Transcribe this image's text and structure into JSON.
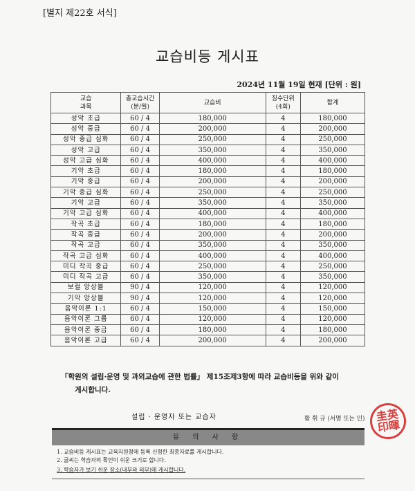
{
  "form_no": "[별지 제22호 서식]",
  "title": "교습비등 게시표",
  "date_line": "2024년 11월 19일   현재 [단위 : 원]",
  "table": {
    "headers": [
      "교습\n과목",
      "총교습시간\n(분/월)",
      "교습비",
      "징수단위\n(4회)",
      "합계"
    ],
    "rows": [
      [
        "성악 초급",
        "60 / 4",
        "180,000",
        "4",
        "180,000"
      ],
      [
        "성악 중급",
        "60 / 4",
        "200,000",
        "4",
        "200,000"
      ],
      [
        "성악 중급 심화",
        "60 / 4",
        "250,000",
        "4",
        "250,000"
      ],
      [
        "성악 고급",
        "60 / 4",
        "350,000",
        "4",
        "350,000"
      ],
      [
        "성악 고급 심화",
        "60 / 4",
        "400,000",
        "4",
        "400,000"
      ],
      [
        "기악 초급",
        "60 / 4",
        "180,000",
        "4",
        "180,000"
      ],
      [
        "기악 중급",
        "60 / 4",
        "200,000",
        "4",
        "200,000"
      ],
      [
        "기악 중급 심화",
        "60 / 4",
        "250,000",
        "4",
        "250,000"
      ],
      [
        "기악 고급",
        "60 / 4",
        "350,000",
        "4",
        "350,000"
      ],
      [
        "기악 고급 심화",
        "60 / 4",
        "400,000",
        "4",
        "400,000"
      ],
      [
        "작곡 초급",
        "60 / 4",
        "180,000",
        "4",
        "180,000"
      ],
      [
        "작곡 중급",
        "60 / 4",
        "200,000",
        "4",
        "200,000"
      ],
      [
        "작곡 고급",
        "60 / 4",
        "350,000",
        "4",
        "350,000"
      ],
      [
        "작곡 고급 심화",
        "60 / 4",
        "400,000",
        "4",
        "400,000"
      ],
      [
        "미디 작곡 중급",
        "60 / 4",
        "250,000",
        "4",
        "250,000"
      ],
      [
        "미디 작곡 고급",
        "60 / 4",
        "350,000",
        "4",
        "350,000"
      ],
      [
        "보컬 앙상블",
        "90 / 4",
        "120,000",
        "4",
        "120,000"
      ],
      [
        "기악 앙상블",
        "90 / 4",
        "120,000",
        "4",
        "120,000"
      ],
      [
        "음악이론 1:1",
        "60 / 4",
        "150,000",
        "4",
        "150,000"
      ],
      [
        "음악이론 그룹",
        "60 / 4",
        "120,000",
        "4",
        "120,000"
      ],
      [
        "음악이론 중급",
        "60 / 4",
        "180,000",
        "4",
        "180,000"
      ],
      [
        "음악이론 고급",
        "60 / 4",
        "200,000",
        "4",
        "200,000"
      ]
    ]
  },
  "notice": {
    "line1": "「학원의 설립·운영 및 과외교습에 관한 법률」 제15조제3항에 따라 교습비등을 위와 같이",
    "line2": "게시합니다."
  },
  "founder_label": "설립 · 운영자 또는 교습자",
  "signer": "황 휘 규 (서명 또는 인)",
  "stamp_text": "圭英印暉",
  "stamp_color": "#d42020",
  "caution_title": "유 의 사 항",
  "notes": [
    "1. 교습비등 게시표는 교육지원청에 등록 신청한 최종자료를 게시합니다.",
    "2. 글씨는 학습자의 확인이 쉬운 크기로 합니다.",
    "3. 학습자가 보기 쉬운 장소(내부와 외부)에 게시합니다."
  ]
}
